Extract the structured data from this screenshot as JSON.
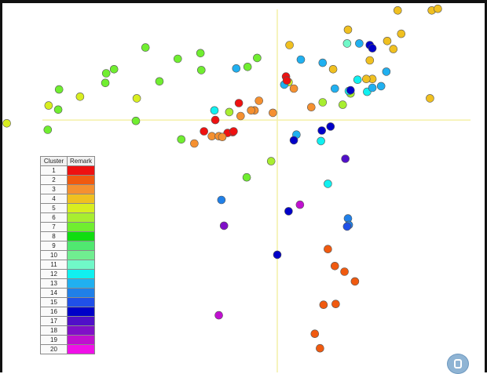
{
  "legend": {
    "header_cluster": "Cluster",
    "header_remark": "Remark",
    "rows": [
      {
        "cluster": "1",
        "color": "#ee1111"
      },
      {
        "cluster": "2",
        "color": "#f05a10"
      },
      {
        "cluster": "3",
        "color": "#f59030"
      },
      {
        "cluster": "4",
        "color": "#f0c020"
      },
      {
        "cluster": "5",
        "color": "#d8ee20"
      },
      {
        "cluster": "6",
        "color": "#a8ee30"
      },
      {
        "cluster": "7",
        "color": "#70ee30"
      },
      {
        "cluster": "8",
        "color": "#10dd10"
      },
      {
        "cluster": "9",
        "color": "#50e870"
      },
      {
        "cluster": "10",
        "color": "#70ee90"
      },
      {
        "cluster": "11",
        "color": "#70f8c8"
      },
      {
        "cluster": "12",
        "color": "#10f0f0"
      },
      {
        "cluster": "13",
        "color": "#20b0f0"
      },
      {
        "cluster": "14",
        "color": "#2080e8"
      },
      {
        "cluster": "15",
        "color": "#2050e8"
      },
      {
        "cluster": "16",
        "color": "#0000c8"
      },
      {
        "cluster": "17",
        "color": "#5010c8"
      },
      {
        "cluster": "18",
        "color": "#8010c8"
      },
      {
        "cluster": "19",
        "color": "#c010d0"
      },
      {
        "cluster": "20",
        "color": "#f010e8"
      }
    ]
  },
  "chart_data": {
    "type": "scatter",
    "title": "",
    "xlabel": "",
    "ylabel": "",
    "xlim": [
      -315,
      225
    ],
    "ylim": [
      -310,
      145
    ],
    "grid": false,
    "axes_crossing": [
      0,
      0
    ],
    "legend_position": "left",
    "points": [
      {
        "x": -310,
        "y": -4,
        "cluster": 5
      },
      {
        "x": -262,
        "y": 18,
        "cluster": 5
      },
      {
        "x": -226,
        "y": 29,
        "cluster": 5
      },
      {
        "x": -161,
        "y": 27,
        "cluster": 5
      },
      {
        "x": -250,
        "y": 38,
        "cluster": 7
      },
      {
        "x": -251,
        "y": 13,
        "cluster": 7
      },
      {
        "x": -263,
        "y": -12,
        "cluster": 7
      },
      {
        "x": -196,
        "y": 58,
        "cluster": 7
      },
      {
        "x": -187,
        "y": 63,
        "cluster": 7
      },
      {
        "x": -197,
        "y": 46,
        "cluster": 7
      },
      {
        "x": -151,
        "y": 90,
        "cluster": 7
      },
      {
        "x": -114,
        "y": 76,
        "cluster": 7
      },
      {
        "x": -88,
        "y": 83,
        "cluster": 7
      },
      {
        "x": -87,
        "y": 62,
        "cluster": 7
      },
      {
        "x": -135,
        "y": 48,
        "cluster": 7
      },
      {
        "x": -162,
        "y": -1,
        "cluster": 7
      },
      {
        "x": -34,
        "y": 66,
        "cluster": 7
      },
      {
        "x": -23,
        "y": 77,
        "cluster": 7
      },
      {
        "x": -110,
        "y": -24,
        "cluster": 7
      },
      {
        "x": -35,
        "y": -71,
        "cluster": 7
      },
      {
        "x": -55,
        "y": 10,
        "cluster": 6
      },
      {
        "x": -7,
        "y": -51,
        "cluster": 6
      },
      {
        "x": 52,
        "y": 22,
        "cluster": 6
      },
      {
        "x": 75,
        "y": 19,
        "cluster": 6
      },
      {
        "x": 84,
        "y": 33,
        "cluster": 6
      },
      {
        "x": 13,
        "y": 47,
        "cluster": 5
      },
      {
        "x": -72,
        "y": 12,
        "cluster": 12
      },
      {
        "x": 103,
        "y": 35,
        "cluster": 12
      },
      {
        "x": 82,
        "y": 36,
        "cluster": 12
      },
      {
        "x": 92,
        "y": 50,
        "cluster": 12
      },
      {
        "x": 80,
        "y": 95,
        "cluster": 11
      },
      {
        "x": 94,
        "y": 95,
        "cluster": 13
      },
      {
        "x": -47,
        "y": 64,
        "cluster": 13
      },
      {
        "x": 27,
        "y": 75,
        "cluster": 13
      },
      {
        "x": 52,
        "y": 71,
        "cluster": 13
      },
      {
        "x": 125,
        "y": 60,
        "cluster": 13
      },
      {
        "x": 109,
        "y": 40,
        "cluster": 13
      },
      {
        "x": 119,
        "y": 42,
        "cluster": 13
      },
      {
        "x": 66,
        "y": 39,
        "cluster": 13
      },
      {
        "x": 8,
        "y": 44,
        "cluster": 13
      },
      {
        "x": 22,
        "y": -18,
        "cluster": 13
      },
      {
        "x": 50,
        "y": -26,
        "cluster": 12
      },
      {
        "x": 58,
        "y": -79,
        "cluster": 12
      },
      {
        "x": 81,
        "y": -122,
        "cluster": 14
      },
      {
        "x": -64,
        "y": -99,
        "cluster": 14
      },
      {
        "x": 82,
        "y": -130,
        "cluster": 14
      },
      {
        "x": 80,
        "y": -132,
        "cluster": 15
      },
      {
        "x": 106,
        "y": 93,
        "cluster": 16
      },
      {
        "x": 109,
        "y": 89,
        "cluster": 16
      },
      {
        "x": 84,
        "y": 37,
        "cluster": 16
      },
      {
        "x": 19,
        "y": -25,
        "cluster": 16
      },
      {
        "x": 61,
        "y": -8,
        "cluster": 16
      },
      {
        "x": 51,
        "y": -13,
        "cluster": 16
      },
      {
        "x": 13,
        "y": -113,
        "cluster": 16
      },
      {
        "x": 0,
        "y": -167,
        "cluster": 16
      },
      {
        "x": 78,
        "y": -48,
        "cluster": 17
      },
      {
        "x": -61,
        "y": -131,
        "cluster": 18
      },
      {
        "x": -67,
        "y": -242,
        "cluster": 19
      },
      {
        "x": 26,
        "y": -105,
        "cluster": 19
      },
      {
        "x": 10,
        "y": 54,
        "cluster": 1
      },
      {
        "x": 11,
        "y": 49,
        "cluster": 1
      },
      {
        "x": -44,
        "y": 21,
        "cluster": 1
      },
      {
        "x": -71,
        "y": 0,
        "cluster": 1
      },
      {
        "x": -84,
        "y": -14,
        "cluster": 1
      },
      {
        "x": -51,
        "y": -15,
        "cluster": 1
      },
      {
        "x": -57,
        "y": -16,
        "cluster": 1
      },
      {
        "x": -50,
        "y": -14,
        "cluster": 1
      },
      {
        "x": 58,
        "y": -160,
        "cluster": 2
      },
      {
        "x": 66,
        "y": -181,
        "cluster": 2
      },
      {
        "x": 77,
        "y": -188,
        "cluster": 2
      },
      {
        "x": 89,
        "y": -200,
        "cluster": 2
      },
      {
        "x": 53,
        "y": -229,
        "cluster": 2
      },
      {
        "x": 67,
        "y": -228,
        "cluster": 2
      },
      {
        "x": 43,
        "y": -265,
        "cluster": 2
      },
      {
        "x": 49,
        "y": -283,
        "cluster": 2
      },
      {
        "x": -21,
        "y": 24,
        "cluster": 3
      },
      {
        "x": -26,
        "y": 12,
        "cluster": 3
      },
      {
        "x": -30,
        "y": 12,
        "cluster": 3
      },
      {
        "x": -42,
        "y": 5,
        "cluster": 3
      },
      {
        "x": -5,
        "y": 9,
        "cluster": 3
      },
      {
        "x": 39,
        "y": 16,
        "cluster": 3
      },
      {
        "x": 19,
        "y": 39,
        "cluster": 3
      },
      {
        "x": -75,
        "y": -20,
        "cluster": 3
      },
      {
        "x": -67,
        "y": -20,
        "cluster": 3
      },
      {
        "x": -63,
        "y": -21,
        "cluster": 3
      },
      {
        "x": -95,
        "y": -29,
        "cluster": 3
      },
      {
        "x": 14,
        "y": 93,
        "cluster": 4
      },
      {
        "x": 64,
        "y": 63,
        "cluster": 4
      },
      {
        "x": 81,
        "y": 112,
        "cluster": 4
      },
      {
        "x": 106,
        "y": 74,
        "cluster": 4
      },
      {
        "x": 109,
        "y": 51,
        "cluster": 4
      },
      {
        "x": 102,
        "y": 51,
        "cluster": 4
      },
      {
        "x": 126,
        "y": 98,
        "cluster": 4
      },
      {
        "x": 133,
        "y": 88,
        "cluster": 4
      },
      {
        "x": 142,
        "y": 107,
        "cluster": 4
      },
      {
        "x": 138,
        "y": 136,
        "cluster": 4
      },
      {
        "x": 177,
        "y": 136,
        "cluster": 4
      },
      {
        "x": 184,
        "y": 138,
        "cluster": 4
      },
      {
        "x": 175,
        "y": 27,
        "cluster": 4
      }
    ]
  }
}
